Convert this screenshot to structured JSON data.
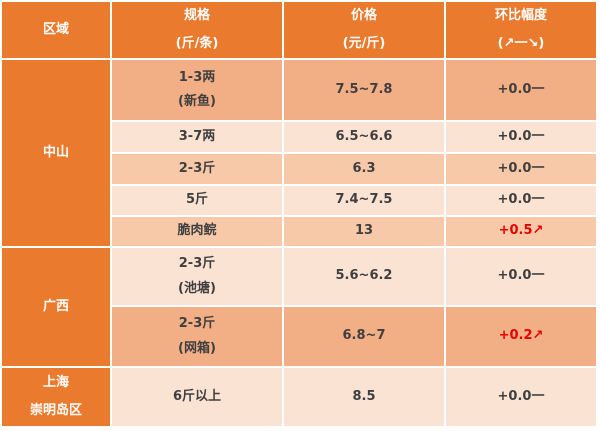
{
  "colors": {
    "header_orange": "#EA7A2E",
    "row_shade_dark": "#F2AE85",
    "row_shade_mid": "#F8C9A8",
    "row_shade_light": "#FBE3D4",
    "body_text": "#3F3F3F",
    "header_text": "#FFFFFF",
    "increase_red": "#E60000",
    "grid_gap": "#FFFFFF"
  },
  "header": {
    "columns": [
      {
        "line1": "区域",
        "line2": ""
      },
      {
        "line1": "规格",
        "line2": "(斤/条)"
      },
      {
        "line1": "价格",
        "line2": "(元/斤)"
      },
      {
        "line1": "环比幅度",
        "line2": "(↗一↘)"
      }
    ]
  },
  "regions": [
    {
      "line1": "中山",
      "line2": "",
      "row_count": 5
    },
    {
      "line1": "广西",
      "line2": "",
      "row_count": 2
    },
    {
      "line1": "上海",
      "line2": "崇明岛区",
      "row_count": 1
    }
  ],
  "rows": [
    {
      "spec1": "1-3两",
      "spec2": "(新鱼)",
      "price": "7.5~7.8",
      "change": "+0.0一",
      "change_up": false
    },
    {
      "spec1": "3-7两",
      "spec2": "",
      "price": "6.5~6.6",
      "change": "+0.0一",
      "change_up": false
    },
    {
      "spec1": "2-3斤",
      "spec2": "",
      "price": "6.3",
      "change": "+0.0一",
      "change_up": false
    },
    {
      "spec1": "5斤",
      "spec2": "",
      "price": "7.4~7.5",
      "change": "+0.0一",
      "change_up": false
    },
    {
      "spec1": "脆肉鲩",
      "spec2": "",
      "price": "13",
      "change": "+0.5↗",
      "change_up": true
    },
    {
      "spec1": "2-3斤",
      "spec2": "(池塘)",
      "price": "5.6~6.2",
      "change": "+0.0一",
      "change_up": false
    },
    {
      "spec1": "2-3斤",
      "spec2": "(网箱)",
      "price": "6.8~7",
      "change": "+0.2↗",
      "change_up": true
    },
    {
      "spec1": "6斤以上",
      "spec2": "",
      "price": "8.5",
      "change": "+0.0一",
      "change_up": false
    }
  ]
}
